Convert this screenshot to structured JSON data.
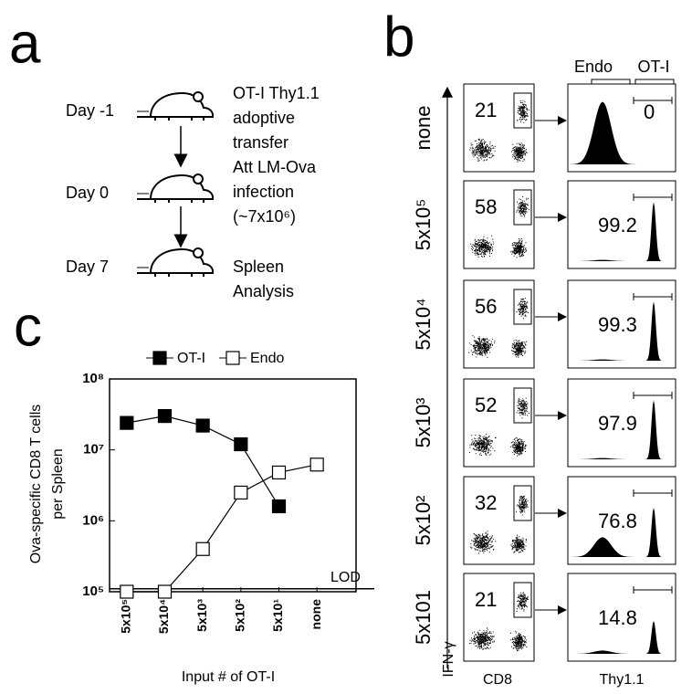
{
  "panel_a": {
    "label": "a",
    "steps": [
      {
        "day": "Day -1",
        "lines": [
          "OT-I Thy1.1",
          "adoptive",
          "transfer"
        ]
      },
      {
        "day": "Day 0",
        "lines": [
          "Att LM-Ova",
          "infection",
          "(~7x10⁶)"
        ]
      },
      {
        "day": "Day 7",
        "lines": [
          "Spleen",
          "Analysis"
        ]
      }
    ]
  },
  "panel_b": {
    "label": "b",
    "gate_headers": [
      "Endo",
      "OT-I"
    ],
    "y_axis_label": "IFN-γ",
    "x_axis_labels": [
      "CD8",
      "Thy1.1"
    ],
    "rows": [
      {
        "label": "none",
        "dot_percent": 21,
        "hist_percent": 0
      },
      {
        "label": "5x10⁵",
        "dot_percent": 58,
        "hist_percent": 99.2
      },
      {
        "label": "5x10⁴",
        "dot_percent": 56,
        "hist_percent": 99.3
      },
      {
        "label": "5x10³",
        "dot_percent": 52,
        "hist_percent": 97.9
      },
      {
        "label": "5x10²",
        "dot_percent": 32,
        "hist_percent": 76.8
      },
      {
        "label": "5x101",
        "dot_percent": 21,
        "hist_percent": 14.8
      }
    ]
  },
  "chart_data": {
    "type": "line",
    "panel_label": "c",
    "y_axis_label": [
      "Ova-specific CD8 T cells",
      "per Spleen"
    ],
    "x_axis_label": "Input # of OT-I",
    "categories": [
      "5x10⁵",
      "5x10⁴",
      "5x10³",
      "5x10²",
      "5x10¹",
      "none"
    ],
    "series": [
      {
        "name": "OT-I",
        "color": "#000000",
        "values": [
          24000000,
          30000000,
          22000000,
          12000000,
          1600000,
          null
        ]
      },
      {
        "name": "Endo",
        "color": "#ffffff",
        "values": [
          100000,
          100000,
          400000,
          2500000,
          4800000,
          6200000
        ]
      }
    ],
    "log_y": true,
    "ylim": [
      100000,
      100000000
    ],
    "yticks": [
      {
        "value": 100000,
        "label": "10⁵"
      },
      {
        "value": 1000000,
        "label": "10⁶"
      },
      {
        "value": 10000000,
        "label": "10⁷"
      },
      {
        "value": 100000000,
        "label": "10⁸"
      }
    ],
    "reference_line": {
      "value": 110000,
      "label": "LOD"
    }
  }
}
